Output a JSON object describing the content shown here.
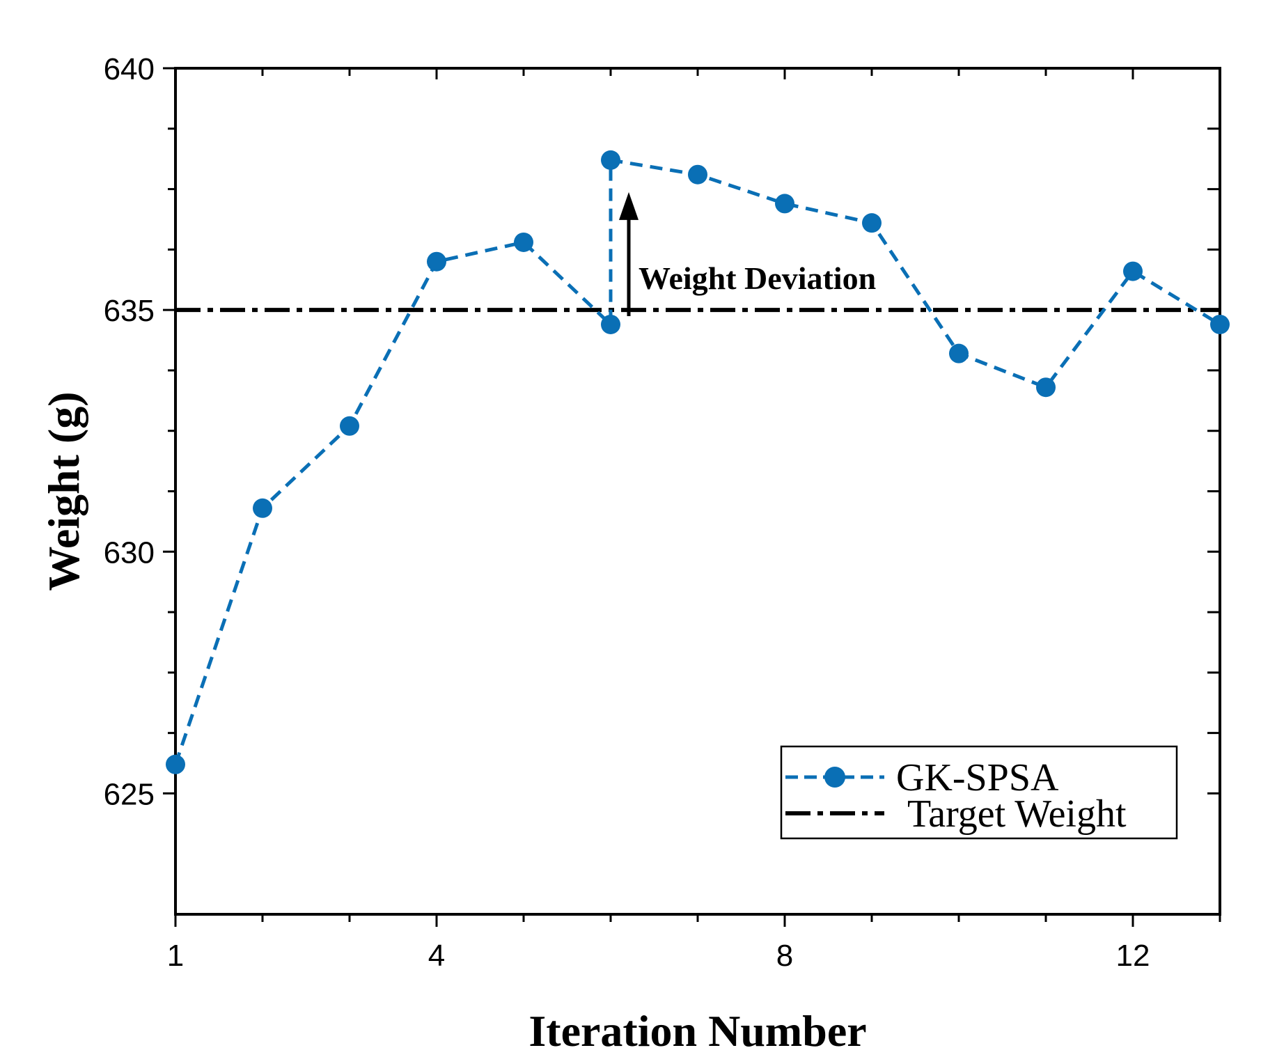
{
  "chart_data": {
    "type": "line",
    "title": "",
    "xlabel": "Iteration Number",
    "ylabel": "Weight (g)",
    "xlim": [
      1,
      13
    ],
    "ylim": [
      622.5,
      640
    ],
    "x_ticks": [
      1,
      4,
      8,
      12
    ],
    "x_minor_ticks": [
      2,
      3,
      5,
      6,
      7,
      9,
      10,
      11,
      13
    ],
    "y_ticks": [
      625,
      630,
      635,
      640
    ],
    "y_minor_ticks": [
      626.25,
      627.5,
      628.75,
      631.25,
      632.5,
      633.75,
      636.25,
      637.5,
      638.75
    ],
    "grid": false,
    "legend_position": "bottom-right",
    "series": [
      {
        "name": "GK-SPSA",
        "style": "dashed-with-markers",
        "color": "#0a6fb5",
        "x": [
          1,
          2,
          3,
          4,
          5,
          6,
          6,
          7,
          8,
          9,
          10,
          11,
          12,
          13
        ],
        "y": [
          625.6,
          630.9,
          632.6,
          636.0,
          636.4,
          634.7,
          638.1,
          637.8,
          637.2,
          636.8,
          634.1,
          633.4,
          635.8,
          634.7
        ]
      },
      {
        "name": "Target Weight",
        "style": "dash-dot",
        "color": "#000000",
        "value": 635
      }
    ],
    "annotations": [
      {
        "text": "Weight Deviation",
        "x": 6,
        "y_from": 634.7,
        "y_to": 638.1
      }
    ]
  }
}
